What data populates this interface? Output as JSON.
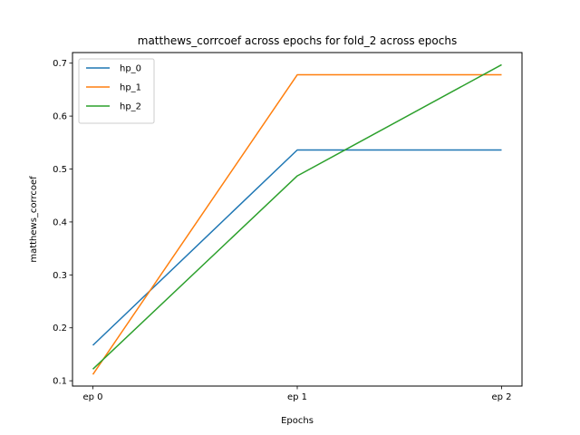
{
  "chart_data": {
    "type": "line",
    "title": "matthews_corrcoef across epochs for fold_2 across epochs",
    "xlabel": "Epochs",
    "ylabel": "matthews_corrcoef",
    "categories": [
      "ep 0",
      "ep 1",
      "ep 2"
    ],
    "ylim": [
      0.09,
      0.72
    ],
    "yticks": [
      0.1,
      0.2,
      0.3,
      0.4,
      0.5,
      0.6,
      0.7
    ],
    "ytick_labels": [
      "0.1",
      "0.2",
      "0.3",
      "0.4",
      "0.5",
      "0.6",
      "0.7"
    ],
    "grid": false,
    "legend_position": "top-left",
    "series": [
      {
        "name": "hp_0",
        "color": "#1f77b4",
        "values": [
          0.167,
          0.536,
          0.536
        ]
      },
      {
        "name": "hp_1",
        "color": "#ff7f0e",
        "values": [
          0.112,
          0.678,
          0.678
        ]
      },
      {
        "name": "hp_2",
        "color": "#2ca02c",
        "values": [
          0.122,
          0.487,
          0.697
        ]
      }
    ]
  }
}
